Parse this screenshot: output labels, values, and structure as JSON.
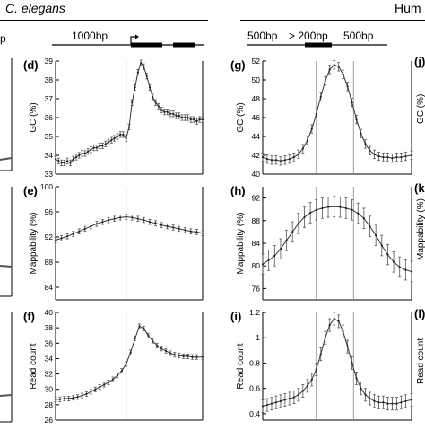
{
  "header": {
    "left_species": "C. elegans",
    "right_species": "Hum",
    "left_cut_label": "p",
    "celegans_window": "1000bp",
    "human_windows": [
      "500bp",
      "> 200bp",
      "500bp"
    ]
  },
  "chart_data": [
    {
      "id": "d",
      "panel_label": "(d)",
      "type": "line",
      "organism": "C. elegans",
      "ylabel": "GC (%)",
      "ylim": [
        33,
        39
      ],
      "yticks": [
        33,
        34,
        35,
        36,
        37,
        38,
        39
      ],
      "x": [
        0,
        2,
        4,
        6,
        8,
        10,
        12,
        14,
        16,
        18,
        20,
        22,
        24,
        26,
        28,
        30,
        32,
        34,
        36,
        38,
        40,
        42,
        44,
        46,
        48,
        50,
        52,
        54,
        56,
        58,
        60,
        62,
        64,
        66,
        68,
        70,
        72,
        74,
        76,
        78,
        80,
        82,
        84,
        86,
        88,
        90,
        92,
        94,
        96,
        98,
        100
      ],
      "y": [
        33.8,
        33.7,
        33.6,
        33.6,
        33.7,
        33.6,
        33.8,
        33.9,
        34.0,
        34.1,
        34.1,
        34.2,
        34.3,
        34.4,
        34.4,
        34.5,
        34.5,
        34.6,
        34.7,
        34.8,
        34.9,
        35.0,
        35.1,
        35.1,
        34.9,
        35.5,
        36.8,
        37.6,
        38.4,
        38.9,
        38.7,
        38.2,
        37.6,
        37.1,
        36.8,
        36.6,
        36.4,
        36.3,
        36.3,
        36.2,
        36.2,
        36.1,
        36.1,
        36.0,
        36.0,
        36.0,
        35.9,
        35.9,
        35.8,
        35.9,
        35.9
      ],
      "err": 0.15,
      "vlines": [
        48
      ]
    },
    {
      "id": "e",
      "panel_label": "(e)",
      "type": "line",
      "organism": "C. elegans",
      "ylabel": "Mappability (%)",
      "ylim": [
        82,
        100
      ],
      "yticks": [
        84,
        88,
        92,
        96,
        100
      ],
      "x": [
        0,
        4,
        8,
        12,
        16,
        20,
        24,
        28,
        32,
        36,
        40,
        44,
        48,
        52,
        56,
        60,
        64,
        68,
        72,
        76,
        80,
        84,
        88,
        92,
        96,
        100
      ],
      "y": [
        91.5,
        91.8,
        92.1,
        92.5,
        92.9,
        93.3,
        93.7,
        94.1,
        94.4,
        94.7,
        94.9,
        95.1,
        95.2,
        95.1,
        94.9,
        94.7,
        94.4,
        94.2,
        93.9,
        93.7,
        93.5,
        93.3,
        93.1,
        92.9,
        92.8,
        92.6
      ],
      "err": 0.4,
      "vlines": [
        48
      ]
    },
    {
      "id": "f",
      "panel_label": "(f)",
      "type": "line",
      "organism": "C. elegans",
      "ylabel": "Read count",
      "ylim": [
        26,
        40
      ],
      "yticks": [
        26,
        28,
        30,
        32,
        34,
        36,
        38,
        40
      ],
      "x": [
        0,
        3,
        6,
        9,
        12,
        15,
        18,
        21,
        24,
        27,
        30,
        33,
        36,
        39,
        42,
        45,
        48,
        51,
        54,
        57,
        60,
        63,
        66,
        69,
        72,
        75,
        78,
        81,
        84,
        87,
        90,
        93,
        96,
        100
      ],
      "y": [
        28.7,
        28.7,
        28.8,
        28.8,
        28.9,
        29.0,
        29.2,
        29.4,
        29.7,
        30.0,
        30.3,
        30.6,
        30.9,
        31.3,
        31.8,
        32.4,
        33.3,
        34.8,
        36.6,
        38.2,
        37.9,
        37.0,
        36.3,
        35.7,
        35.3,
        35.0,
        34.7,
        34.5,
        34.4,
        34.3,
        34.3,
        34.2,
        34.2,
        34.2
      ],
      "err": 0.3,
      "vlines": [
        48
      ]
    },
    {
      "id": "g",
      "panel_label": "(g)",
      "type": "line",
      "organism": "Human",
      "ylabel": "GC (%)",
      "ylim": [
        40,
        52
      ],
      "yticks": [
        40,
        42,
        44,
        46,
        48,
        50,
        52
      ],
      "x": [
        0,
        3,
        6,
        9,
        12,
        15,
        18,
        21,
        24,
        27,
        30,
        33,
        36,
        39,
        42,
        45,
        48,
        51,
        54,
        57,
        60,
        63,
        66,
        69,
        72,
        75,
        78,
        81,
        84,
        87,
        90,
        93,
        96,
        100
      ],
      "y": [
        41.8,
        41.6,
        41.5,
        41.5,
        41.4,
        41.5,
        41.6,
        41.8,
        42.1,
        42.7,
        43.6,
        44.8,
        46.4,
        48.2,
        49.9,
        51.1,
        51.6,
        51.4,
        50.6,
        49.3,
        47.6,
        45.8,
        44.3,
        43.2,
        42.5,
        42.1,
        41.9,
        41.8,
        41.8,
        41.7,
        41.8,
        41.8,
        41.9,
        42.0
      ],
      "err": 0.45,
      "vlines": [
        36,
        61
      ]
    },
    {
      "id": "h",
      "panel_label": "(h)",
      "type": "line",
      "organism": "Human",
      "ylabel": "Mappability (%)",
      "ylim": [
        74,
        94
      ],
      "yticks": [
        76,
        80,
        84,
        88,
        92
      ],
      "x": [
        0,
        4,
        8,
        12,
        16,
        20,
        24,
        28,
        32,
        36,
        40,
        44,
        48,
        52,
        56,
        60,
        64,
        68,
        72,
        76,
        80,
        84,
        88,
        92,
        96,
        100
      ],
      "y": [
        80.3,
        81.0,
        81.8,
        83.0,
        84.5,
        86.0,
        87.5,
        88.6,
        89.4,
        89.9,
        90.2,
        90.4,
        90.5,
        90.4,
        90.2,
        89.9,
        89.3,
        88.4,
        87.0,
        85.4,
        83.6,
        82.0,
        80.7,
        79.8,
        79.3,
        79.0
      ],
      "err": 1.8,
      "vlines": [
        36,
        61
      ]
    },
    {
      "id": "i",
      "panel_label": "(i)",
      "type": "line",
      "organism": "Human",
      "ylabel": "Read count",
      "ylim": [
        0.35,
        1.2
      ],
      "yticks": [
        0.4,
        0.6,
        0.8,
        1.0,
        1.2
      ],
      "ytick_labels": [
        "0.4",
        "0.6",
        "0.8",
        "1",
        "1.2"
      ],
      "x": [
        0,
        3,
        6,
        9,
        12,
        15,
        18,
        21,
        24,
        27,
        30,
        33,
        36,
        39,
        42,
        45,
        48,
        51,
        54,
        57,
        60,
        63,
        66,
        69,
        72,
        75,
        78,
        81,
        84,
        87,
        90,
        93,
        96,
        100
      ],
      "y": [
        0.46,
        0.47,
        0.48,
        0.49,
        0.5,
        0.51,
        0.52,
        0.53,
        0.55,
        0.58,
        0.62,
        0.67,
        0.75,
        0.87,
        1.0,
        1.1,
        1.15,
        1.13,
        1.05,
        0.93,
        0.8,
        0.68,
        0.6,
        0.55,
        0.52,
        0.5,
        0.49,
        0.49,
        0.48,
        0.48,
        0.48,
        0.49,
        0.5,
        0.51
      ],
      "err": 0.05,
      "vlines": [
        36,
        61
      ]
    }
  ],
  "cut_labels": {
    "j": "(j)",
    "k": "(k",
    "l": "(l)",
    "j_ylabel": "GC (%)",
    "k_ylabel": "Mappability (%)",
    "l_ylabel": "Read count"
  }
}
